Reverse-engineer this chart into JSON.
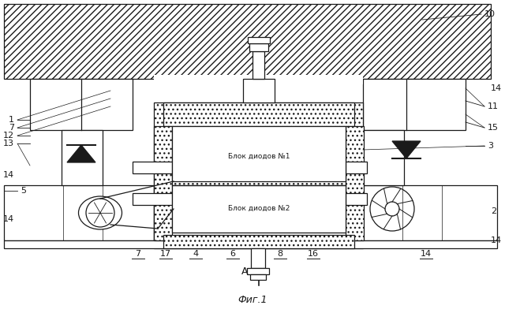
{
  "bg_color": "#ffffff",
  "line_color": "#1a1a1a",
  "title": "Фиг.1",
  "label_block1": "Блок диодов №1",
  "label_block2": "Блок диодов №2"
}
